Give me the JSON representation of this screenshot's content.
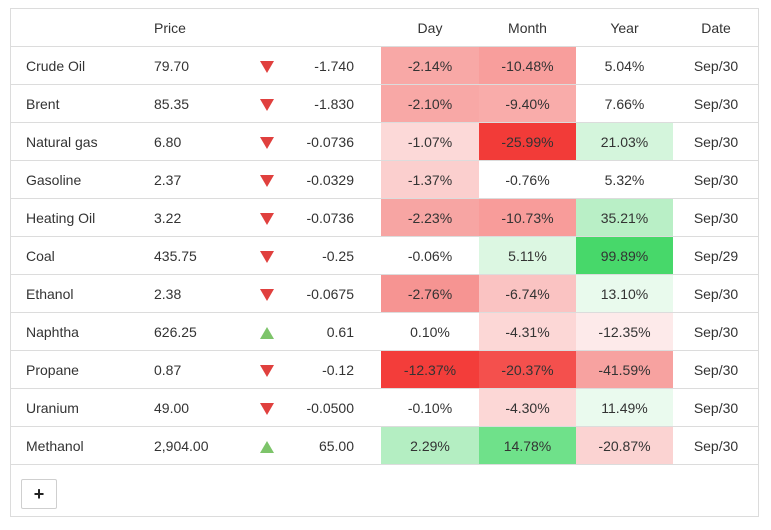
{
  "header": {
    "col_price": "Price",
    "col_day": "Day",
    "col_month": "Month",
    "col_year": "Year",
    "col_date": "Date"
  },
  "rows": [
    {
      "name": "Crude Oil",
      "price": "79.70",
      "dir": "down",
      "change": "-1.740",
      "day": "-2.14%",
      "month": "-10.48%",
      "year": "5.04%",
      "date": "Sep/30",
      "day_bg": "#f8a8a6",
      "month_bg": "#f89e9c",
      "year_bg": "#ffffff"
    },
    {
      "name": "Brent",
      "price": "85.35",
      "dir": "down",
      "change": "-1.830",
      "day": "-2.10%",
      "month": "-9.40%",
      "year": "7.66%",
      "date": "Sep/30",
      "day_bg": "#f8a8a6",
      "month_bg": "#f9acaa",
      "year_bg": "#ffffff"
    },
    {
      "name": "Natural gas",
      "price": "6.80",
      "dir": "down",
      "change": "-0.0736",
      "day": "-1.07%",
      "month": "-25.99%",
      "year": "21.03%",
      "date": "Sep/30",
      "day_bg": "#fcd9d8",
      "month_bg": "#f23b38",
      "year_bg": "#d4f5dc"
    },
    {
      "name": "Gasoline",
      "price": "2.37",
      "dir": "down",
      "change": "-0.0329",
      "day": "-1.37%",
      "month": "-0.76%",
      "year": "5.32%",
      "date": "Sep/30",
      "day_bg": "#fbcfce",
      "month_bg": "#ffffff",
      "year_bg": "#ffffff"
    },
    {
      "name": "Heating Oil",
      "price": "3.22",
      "dir": "down",
      "change": "-0.0736",
      "day": "-2.23%",
      "month": "-10.73%",
      "year": "35.21%",
      "date": "Sep/30",
      "day_bg": "#f7a5a3",
      "month_bg": "#f89c9a",
      "year_bg": "#b9efc6"
    },
    {
      "name": "Coal",
      "price": "435.75",
      "dir": "down",
      "change": "-0.25",
      "day": "-0.06%",
      "month": "5.11%",
      "year": "99.89%",
      "date": "Sep/29",
      "day_bg": "#ffffff",
      "month_bg": "#dcf7e2",
      "year_bg": "#47d86a"
    },
    {
      "name": "Ethanol",
      "price": "2.38",
      "dir": "down",
      "change": "-0.0675",
      "day": "-2.76%",
      "month": "-6.74%",
      "year": "13.10%",
      "date": "Sep/30",
      "day_bg": "#f69492",
      "month_bg": "#fac3c2",
      "year_bg": "#e9faed"
    },
    {
      "name": "Naphtha",
      "price": "626.25",
      "dir": "up",
      "change": "0.61",
      "day": "0.10%",
      "month": "-4.31%",
      "year": "-12.35%",
      "date": "Sep/30",
      "day_bg": "#ffffff",
      "month_bg": "#fcd7d6",
      "year_bg": "#fdeaea"
    },
    {
      "name": "Propane",
      "price": "0.87",
      "dir": "down",
      "change": "-0.12",
      "day": "-12.37%",
      "month": "-20.37%",
      "year": "-41.59%",
      "date": "Sep/30",
      "day_bg": "#f33d3a",
      "month_bg": "#f4504d",
      "year_bg": "#f7a2a0"
    },
    {
      "name": "Uranium",
      "price": "49.00",
      "dir": "down",
      "change": "-0.0500",
      "day": "-0.10%",
      "month": "-4.30%",
      "year": "11.49%",
      "date": "Sep/30",
      "day_bg": "#ffffff",
      "month_bg": "#fcd7d6",
      "year_bg": "#eafaee"
    },
    {
      "name": "Methanol",
      "price": "2,904.00",
      "dir": "up",
      "change": "65.00",
      "day": "2.29%",
      "month": "14.78%",
      "year": "-20.87%",
      "date": "Sep/30",
      "day_bg": "#b4eec2",
      "month_bg": "#6fe18a",
      "year_bg": "#fbd3d2"
    }
  ],
  "add_button": {
    "label": "+"
  }
}
